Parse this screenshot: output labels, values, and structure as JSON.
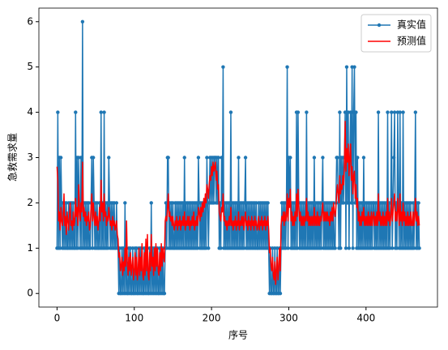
{
  "chart_data": {
    "type": "line",
    "xlabel": "序号",
    "ylabel": "急救需求量",
    "legend": "upper right",
    "xlim": [
      -23.5,
      492.5
    ],
    "xticks": [
      0,
      100,
      200,
      300,
      400
    ],
    "ylim": [
      -0.3,
      6.3
    ],
    "yticks": [
      0,
      1,
      2,
      3,
      4,
      5,
      6
    ],
    "x": [
      0,
      1,
      2,
      3,
      4,
      5,
      6,
      7,
      8,
      9,
      10,
      11,
      12,
      13,
      14,
      15,
      16,
      17,
      18,
      19,
      20,
      21,
      22,
      23,
      24,
      25,
      26,
      27,
      28,
      29,
      30,
      31,
      32,
      33,
      34,
      35,
      36,
      37,
      38,
      39,
      40,
      41,
      42,
      43,
      44,
      45,
      46,
      47,
      48,
      49,
      50,
      51,
      52,
      53,
      54,
      55,
      56,
      57,
      58,
      59,
      60,
      61,
      62,
      63,
      64,
      65,
      66,
      67,
      68,
      69,
      70,
      71,
      72,
      73,
      74,
      75,
      76,
      77,
      78,
      79,
      80,
      81,
      82,
      83,
      84,
      85,
      86,
      87,
      88,
      89,
      90,
      91,
      92,
      93,
      94,
      95,
      96,
      97,
      98,
      99,
      100,
      101,
      102,
      103,
      104,
      105,
      106,
      107,
      108,
      109,
      110,
      111,
      112,
      113,
      114,
      115,
      116,
      117,
      118,
      119,
      120,
      121,
      122,
      123,
      124,
      125,
      126,
      127,
      128,
      129,
      130,
      131,
      132,
      133,
      134,
      135,
      136,
      137,
      138,
      139,
      140,
      141,
      142,
      143,
      144,
      145,
      146,
      147,
      148,
      149,
      150,
      151,
      152,
      153,
      154,
      155,
      156,
      157,
      158,
      159,
      160,
      161,
      162,
      163,
      164,
      165,
      166,
      167,
      168,
      169,
      170,
      171,
      172,
      173,
      174,
      175,
      176,
      177,
      178,
      179,
      180,
      181,
      182,
      183,
      184,
      185,
      186,
      187,
      188,
      189,
      190,
      191,
      192,
      193,
      194,
      195,
      196,
      197,
      198,
      199,
      200,
      201,
      202,
      203,
      204,
      205,
      206,
      207,
      208,
      209,
      210,
      211,
      212,
      213,
      214,
      215,
      216,
      217,
      218,
      219,
      220,
      221,
      222,
      223,
      224,
      225,
      226,
      227,
      228,
      229,
      230,
      231,
      232,
      233,
      234,
      235,
      236,
      237,
      238,
      239,
      240,
      241,
      242,
      243,
      244,
      245,
      246,
      247,
      248,
      249,
      250,
      251,
      252,
      253,
      254,
      255,
      256,
      257,
      258,
      259,
      260,
      261,
      262,
      263,
      264,
      265,
      266,
      267,
      268,
      269,
      270,
      271,
      272,
      273,
      274,
      275,
      276,
      277,
      278,
      279,
      280,
      281,
      282,
      283,
      284,
      285,
      286,
      287,
      288,
      289,
      290,
      291,
      292,
      293,
      294,
      295,
      296,
      297,
      298,
      299,
      300,
      301,
      302,
      303,
      304,
      305,
      306,
      307,
      308,
      309,
      310,
      311,
      312,
      313,
      314,
      315,
      316,
      317,
      318,
      319,
      320,
      321,
      322,
      323,
      324,
      325,
      326,
      327,
      328,
      329,
      330,
      331,
      332,
      333,
      334,
      335,
      336,
      337,
      338,
      339,
      340,
      341,
      342,
      343,
      344,
      345,
      346,
      347,
      348,
      349,
      350,
      351,
      352,
      353,
      354,
      355,
      356,
      357,
      358,
      359,
      360,
      361,
      362,
      363,
      364,
      365,
      366,
      367,
      368,
      369,
      370,
      371,
      372,
      373,
      374,
      375,
      376,
      377,
      378,
      379,
      380,
      381,
      382,
      383,
      384,
      385,
      386,
      387,
      388,
      389,
      390,
      391,
      392,
      393,
      394,
      395,
      396,
      397,
      398,
      399,
      400,
      401,
      402,
      403,
      404,
      405,
      406,
      407,
      408,
      409,
      410,
      411,
      412,
      413,
      414,
      415,
      416,
      417,
      418,
      419,
      420,
      421,
      422,
      423,
      424,
      425,
      426,
      427,
      428,
      429,
      430,
      431,
      432,
      433,
      434,
      435,
      436,
      437,
      438,
      439,
      440,
      441,
      442,
      443,
      444,
      445,
      446,
      447,
      448,
      449,
      450,
      451,
      452,
      453,
      454,
      455,
      456,
      457,
      458,
      459,
      460,
      461,
      462,
      463,
      464,
      465,
      466,
      467,
      468,
      469
    ],
    "series": [
      {
        "name": "真实值",
        "color": "#1f77b4",
        "marker": "o",
        "values": [
          1,
          4,
          1,
          3,
          1,
          3,
          2,
          1,
          2,
          1,
          2,
          1,
          2,
          1,
          1,
          2,
          1,
          2,
          1,
          2,
          1,
          2,
          1,
          1,
          4,
          1,
          3,
          1,
          3,
          2,
          1,
          3,
          1,
          6,
          1,
          2,
          1,
          2,
          1,
          2,
          1,
          2,
          1,
          1,
          2,
          3,
          1,
          3,
          2,
          1,
          2,
          1,
          2,
          1,
          1,
          2,
          1,
          4,
          1,
          2,
          1,
          4,
          1,
          2,
          1,
          2,
          1,
          3,
          2,
          1,
          2,
          1,
          2,
          1,
          2,
          1,
          1,
          2,
          1,
          1,
          0,
          1,
          0,
          0,
          1,
          0,
          1,
          0,
          2,
          0,
          1,
          0,
          0,
          1,
          0,
          1,
          0,
          0,
          1,
          0,
          0,
          1,
          0,
          1,
          0,
          0,
          1,
          0,
          1,
          0,
          1,
          0,
          0,
          1,
          0,
          1,
          0,
          1,
          0,
          0,
          1,
          0,
          2,
          0,
          1,
          0,
          1,
          0,
          1,
          0,
          1,
          0,
          0,
          1,
          0,
          1,
          0,
          1,
          0,
          0,
          1,
          2,
          1,
          3,
          3,
          1,
          2,
          1,
          2,
          1,
          2,
          1,
          1,
          2,
          1,
          2,
          1,
          2,
          1,
          2,
          1,
          2,
          1,
          2,
          1,
          3,
          1,
          2,
          1,
          2,
          1,
          2,
          1,
          2,
          1,
          2,
          1,
          2,
          1,
          2,
          1,
          2,
          1,
          3,
          2,
          1,
          2,
          1,
          2,
          1,
          2,
          1,
          2,
          1,
          3,
          2,
          1,
          2,
          3,
          2,
          3,
          2,
          3,
          2,
          3,
          3,
          2,
          3,
          2,
          3,
          1,
          2,
          1,
          3,
          2,
          5,
          1,
          2,
          1,
          2,
          1,
          2,
          1,
          2,
          1,
          4,
          1,
          2,
          1,
          2,
          1,
          2,
          1,
          2,
          1,
          3,
          1,
          2,
          1,
          2,
          1,
          2,
          1,
          2,
          3,
          1,
          2,
          1,
          2,
          1,
          2,
          1,
          2,
          1,
          2,
          1,
          2,
          1,
          2,
          1,
          1,
          2,
          1,
          2,
          1,
          2,
          1,
          2,
          1,
          2,
          1,
          2,
          1,
          2,
          1,
          0,
          1,
          0,
          0,
          1,
          0,
          0,
          1,
          0,
          0,
          1,
          0,
          0,
          1,
          0,
          1,
          2,
          1,
          2,
          1,
          2,
          1,
          2,
          5,
          1,
          3,
          2,
          3,
          1,
          2,
          1,
          2,
          1,
          2,
          1,
          4,
          1,
          4,
          2,
          1,
          2,
          1,
          2,
          1,
          2,
          1,
          2,
          1,
          4,
          1,
          2,
          1,
          2,
          1,
          2,
          1,
          2,
          1,
          3,
          1,
          2,
          1,
          2,
          1,
          2,
          1,
          2,
          1,
          2,
          3,
          1,
          2,
          1,
          2,
          1,
          2,
          1,
          2,
          1,
          2,
          1,
          2,
          1,
          2,
          1,
          1,
          2,
          3,
          3,
          2,
          1,
          4,
          1,
          3,
          2,
          3,
          2,
          3,
          4,
          1,
          5,
          2,
          4,
          1,
          3,
          4,
          2,
          5,
          1,
          4,
          5,
          2,
          4,
          1,
          3,
          1,
          2,
          1,
          2,
          1,
          2,
          1,
          3,
          1,
          2,
          1,
          2,
          1,
          2,
          1,
          2,
          1,
          2,
          1,
          2,
          2,
          1,
          2,
          1,
          2,
          1,
          4,
          1,
          2,
          1,
          2,
          1,
          2,
          1,
          2,
          1,
          2,
          1,
          4,
          1,
          2,
          1,
          2,
          4,
          1,
          2,
          3,
          4,
          1,
          2,
          1,
          4,
          2,
          1,
          4,
          1,
          2,
          1,
          4,
          1,
          2,
          1,
          2,
          1,
          2,
          1,
          2,
          1,
          2,
          1,
          1,
          2,
          1,
          2,
          4,
          1,
          2,
          1,
          2,
          1
        ]
      },
      {
        "name": "预测值",
        "color": "#ff0000",
        "values": [
          2.8,
          2.5,
          1.6,
          1.8,
          1.4,
          1.9,
          1.6,
          1.5,
          1.7,
          2.2,
          1.5,
          1.7,
          1.3,
          1.8,
          1.6,
          1.4,
          1.7,
          2.0,
          1.5,
          1.6,
          1.4,
          1.8,
          1.5,
          1.6,
          2.1,
          1.7,
          1.9,
          1.5,
          2.4,
          1.8,
          1.6,
          2.0,
          1.8,
          2.9,
          1.7,
          1.9,
          1.6,
          1.8,
          1.5,
          1.7,
          1.6,
          1.8,
          1.4,
          1.5,
          1.9,
          2.2,
          1.6,
          2.0,
          1.7,
          1.5,
          1.8,
          1.5,
          1.7,
          1.4,
          1.6,
          1.9,
          1.6,
          2.5,
          1.8,
          2.0,
          1.6,
          2.2,
          1.7,
          1.8,
          1.5,
          1.7,
          1.6,
          1.9,
          1.7,
          1.5,
          1.6,
          1.4,
          1.7,
          1.5,
          1.6,
          1.4,
          1.5,
          1.6,
          1.3,
          1.2,
          0.8,
          0.9,
          0.5,
          0.6,
          0.8,
          0.4,
          0.7,
          0.5,
          1.0,
          0.6,
          1.6,
          0.7,
          0.4,
          0.8,
          0.5,
          0.9,
          0.4,
          0.6,
          0.8,
          0.3,
          0.5,
          0.9,
          0.4,
          0.8,
          0.3,
          0.5,
          1.0,
          0.4,
          0.8,
          0.5,
          1.1,
          0.4,
          0.3,
          0.9,
          0.4,
          1.2,
          0.5,
          1.3,
          0.4,
          0.3,
          0.9,
          0.5,
          1.3,
          0.6,
          0.8,
          0.4,
          1.0,
          0.5,
          1.1,
          0.6,
          1.0,
          0.5,
          0.4,
          0.9,
          0.5,
          1.1,
          0.6,
          1.0,
          0.8,
          0.7,
          1.6,
          1.7,
          1.6,
          1.9,
          2.2,
          1.7,
          1.8,
          1.6,
          1.7,
          1.5,
          1.7,
          1.5,
          1.4,
          1.6,
          1.5,
          1.7,
          1.4,
          1.6,
          1.5,
          1.7,
          1.4,
          1.6,
          1.5,
          1.7,
          1.5,
          1.8,
          1.4,
          1.6,
          1.5,
          1.7,
          1.5,
          1.7,
          1.4,
          1.6,
          1.5,
          1.7,
          1.5,
          1.8,
          1.4,
          1.6,
          1.5,
          1.7,
          1.5,
          1.9,
          1.8,
          1.6,
          1.9,
          1.7,
          2.0,
          1.8,
          2.1,
          1.9,
          2.2,
          2.0,
          2.4,
          2.3,
          2.1,
          2.4,
          2.6,
          2.5,
          2.8,
          2.6,
          2.9,
          2.7,
          2.8,
          2.9,
          2.5,
          2.7,
          2.3,
          2.4,
          1.8,
          1.7,
          1.6,
          1.9,
          1.8,
          2.2,
          1.6,
          1.7,
          1.5,
          1.6,
          1.4,
          1.6,
          1.5,
          1.7,
          1.5,
          1.9,
          1.5,
          1.6,
          1.4,
          1.6,
          1.5,
          1.7,
          1.4,
          1.6,
          1.5,
          1.8,
          1.4,
          1.6,
          1.5,
          1.7,
          1.5,
          1.7,
          1.4,
          1.6,
          1.8,
          1.5,
          1.6,
          1.4,
          1.7,
          1.5,
          1.6,
          1.4,
          1.7,
          1.5,
          1.6,
          1.4,
          1.7,
          1.5,
          1.6,
          1.4,
          1.5,
          1.7,
          1.4,
          1.6,
          1.5,
          1.7,
          1.4,
          1.6,
          1.5,
          1.7,
          1.4,
          1.6,
          1.5,
          1.7,
          1.4,
          0.9,
          1.0,
          0.6,
          0.5,
          0.8,
          0.4,
          0.3,
          0.7,
          0.2,
          0.5,
          0.8,
          0.3,
          0.6,
          1.0,
          0.5,
          1.5,
          1.7,
          1.6,
          1.8,
          1.5,
          1.8,
          1.6,
          1.7,
          2.2,
          1.6,
          2.1,
          1.9,
          2.3,
          1.6,
          1.8,
          1.5,
          1.7,
          1.5,
          1.8,
          1.6,
          2.2,
          1.7,
          2.3,
          1.9,
          1.6,
          1.8,
          1.5,
          1.7,
          1.5,
          1.7,
          1.5,
          1.7,
          1.6,
          2.1,
          1.6,
          1.8,
          1.5,
          1.7,
          1.5,
          1.7,
          1.5,
          1.7,
          1.5,
          1.9,
          1.5,
          1.7,
          1.5,
          1.8,
          1.5,
          1.7,
          1.5,
          1.7,
          1.6,
          1.8,
          2.0,
          1.6,
          1.8,
          1.6,
          1.8,
          1.6,
          1.8,
          1.6,
          1.7,
          1.5,
          1.8,
          1.6,
          1.9,
          1.6,
          2.0,
          1.8,
          1.7,
          1.9,
          2.2,
          2.4,
          2.2,
          2.0,
          2.6,
          2.2,
          2.4,
          2.3,
          2.6,
          2.4,
          2.8,
          3.8,
          2.7,
          3.2,
          2.9,
          3.3,
          2.6,
          3.0,
          3.3,
          2.5,
          2.8,
          2.2,
          2.6,
          2.7,
          2.1,
          2.4,
          1.9,
          2.1,
          1.6,
          1.8,
          1.5,
          1.7,
          1.5,
          1.8,
          1.6,
          1.9,
          1.5,
          1.7,
          1.5,
          1.7,
          1.5,
          1.8,
          1.5,
          1.7,
          1.5,
          1.8,
          1.5,
          1.7,
          1.8,
          1.5,
          1.7,
          1.5,
          1.8,
          1.5,
          2.2,
          1.6,
          1.8,
          1.5,
          1.7,
          1.5,
          1.8,
          1.5,
          1.7,
          1.5,
          1.8,
          1.5,
          2.1,
          1.6,
          1.8,
          1.5,
          1.7,
          2.1,
          1.6,
          1.8,
          2.0,
          2.2,
          1.6,
          1.8,
          1.6,
          2.1,
          1.8,
          1.5,
          2.2,
          1.6,
          1.8,
          1.5,
          2.0,
          1.6,
          1.8,
          1.5,
          1.7,
          1.5,
          1.8,
          1.5,
          1.7,
          1.5,
          1.8,
          1.5,
          1.5,
          1.8,
          1.5,
          1.7,
          2.1,
          1.6,
          1.8,
          1.5,
          1.7,
          1.5
        ]
      }
    ]
  }
}
